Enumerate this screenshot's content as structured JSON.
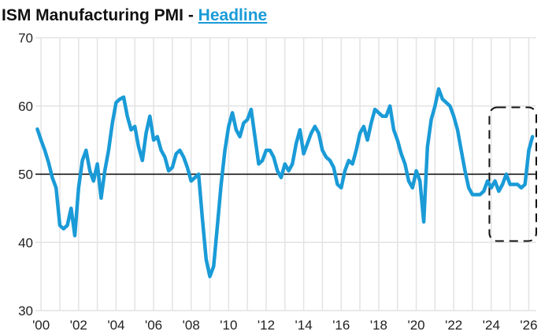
{
  "title": {
    "main": "ISM Manufacturing PMI - ",
    "link": "Headline"
  },
  "colors": {
    "series": "#1a9bd7",
    "grid": "#e3e3e3",
    "reference_line": "#000000",
    "highlight_box": "#111111",
    "title_link": "#1a9bd7"
  },
  "chart_data": {
    "type": "line",
    "title": "ISM Manufacturing PMI - Headline",
    "xlabel": "",
    "ylabel": "",
    "xlim": [
      1999.7,
      2026.4
    ],
    "ylim": [
      30,
      70
    ],
    "grid": true,
    "legend": "none",
    "y_ticks": [
      30,
      40,
      50,
      60,
      70
    ],
    "x_tick_values": [
      2000,
      2002,
      2004,
      2006,
      2008,
      2010,
      2012,
      2014,
      2016,
      2018,
      2020,
      2022,
      2024,
      2026
    ],
    "x_tick_labels": [
      "'00",
      "'02",
      "'04",
      "'06",
      "'08",
      "'10",
      "'12",
      "'14",
      "'16",
      "'18",
      "'20",
      "'22",
      "'24",
      "'26"
    ],
    "reference_line": {
      "y": 50
    },
    "highlight_box": {
      "x": [
        2023.9,
        2026.4
      ],
      "y": [
        40.2,
        59.8
      ]
    },
    "series": [
      {
        "x": [
          1999.8,
          2000.0,
          2000.2,
          2000.4,
          2000.6,
          2000.8,
          2001.0,
          2001.2,
          2001.4,
          2001.6,
          2001.8,
          2002.0,
          2002.2,
          2002.4,
          2002.6,
          2002.8,
          2003.0,
          2003.2,
          2003.4,
          2003.6,
          2003.8,
          2004.0,
          2004.2,
          2004.4,
          2004.6,
          2004.8,
          2005.0,
          2005.2,
          2005.4,
          2005.6,
          2005.8,
          2006.0,
          2006.2,
          2006.4,
          2006.6,
          2006.8,
          2007.0,
          2007.2,
          2007.4,
          2007.6,
          2007.8,
          2008.0,
          2008.2,
          2008.4,
          2008.6,
          2008.8,
          2009.0,
          2009.2,
          2009.4,
          2009.6,
          2009.8,
          2010.0,
          2010.2,
          2010.4,
          2010.6,
          2010.8,
          2011.0,
          2011.2,
          2011.4,
          2011.6,
          2011.8,
          2012.0,
          2012.2,
          2012.4,
          2012.6,
          2012.8,
          2013.0,
          2013.2,
          2013.4,
          2013.6,
          2013.8,
          2014.0,
          2014.2,
          2014.4,
          2014.6,
          2014.8,
          2015.0,
          2015.2,
          2015.4,
          2015.6,
          2015.8,
          2016.0,
          2016.2,
          2016.4,
          2016.6,
          2016.8,
          2017.0,
          2017.2,
          2017.4,
          2017.6,
          2017.8,
          2018.0,
          2018.2,
          2018.4,
          2018.6,
          2018.8,
          2019.0,
          2019.2,
          2019.4,
          2019.6,
          2019.8,
          2020.0,
          2020.2,
          2020.4,
          2020.6,
          2020.8,
          2021.0,
          2021.2,
          2021.4,
          2021.6,
          2021.8,
          2022.0,
          2022.2,
          2022.4,
          2022.6,
          2022.8,
          2023.0,
          2023.2,
          2023.4,
          2023.6,
          2023.8,
          2024.0,
          2024.2,
          2024.4,
          2024.6,
          2024.8,
          2025.0,
          2025.2,
          2025.4,
          2025.6,
          2025.8,
          2026.0,
          2026.2
        ],
        "values": [
          56.6,
          55.0,
          53.5,
          51.7,
          49.5,
          48.0,
          42.5,
          42.0,
          42.5,
          45.0,
          41.0,
          48.0,
          52.0,
          53.5,
          50.5,
          49.0,
          51.5,
          46.5,
          50.5,
          53.5,
          57.5,
          60.5,
          61.0,
          61.3,
          58.5,
          56.5,
          57.0,
          54.0,
          52.0,
          56.0,
          58.5,
          55.0,
          55.5,
          53.5,
          52.5,
          50.5,
          51.0,
          53.0,
          53.5,
          52.5,
          51.0,
          49.0,
          49.5,
          50.0,
          43.5,
          37.5,
          35.0,
          36.5,
          42.5,
          48.5,
          53.5,
          57.0,
          59.0,
          56.5,
          55.5,
          57.5,
          58.0,
          59.5,
          55.5,
          51.5,
          52.0,
          53.5,
          53.5,
          52.5,
          50.5,
          49.5,
          51.5,
          50.5,
          51.5,
          54.5,
          56.5,
          53.0,
          54.5,
          56.0,
          57.0,
          56.0,
          53.5,
          52.5,
          52.0,
          51.0,
          48.5,
          48.0,
          50.5,
          52.0,
          51.5,
          53.5,
          56.0,
          57.0,
          55.0,
          57.5,
          59.5,
          59.0,
          58.5,
          58.5,
          60.0,
          56.5,
          55.0,
          53.0,
          51.5,
          49.0,
          48.0,
          50.5,
          49.0,
          43.0,
          54.0,
          58.0,
          60.0,
          62.5,
          61.0,
          60.5,
          60.0,
          58.5,
          56.5,
          53.5,
          50.5,
          48.0,
          47.0,
          47.0,
          47.0,
          47.5,
          49.0,
          48.0,
          49.0,
          47.5,
          48.5,
          50.0,
          48.5,
          48.5,
          48.5,
          48.0,
          48.5,
          53.5,
          55.5
        ]
      }
    ]
  }
}
